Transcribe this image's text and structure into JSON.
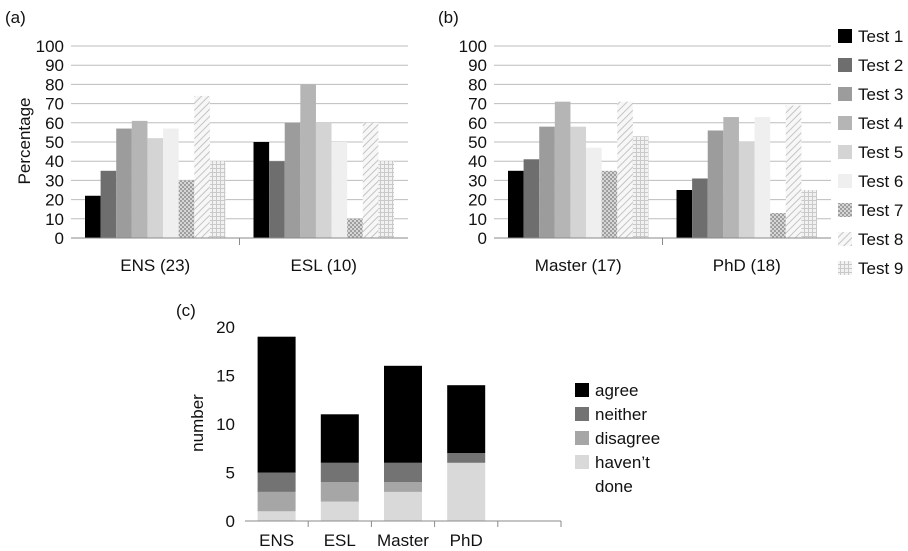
{
  "patterns": {
    "hatch_a": "#a8a8a8",
    "hatch_b": "#d6d6d6",
    "grid_color": "#bdbdbd"
  },
  "chart_data": [
    {
      "id": "a",
      "type": "bar",
      "panel_label": "(a)",
      "ylabel": "Percentage",
      "ylim": [
        0,
        100
      ],
      "yticks": [
        "0",
        "10",
        "20",
        "30",
        "40",
        "50",
        "60",
        "70",
        "80",
        "90",
        "100"
      ],
      "grid": true,
      "categories": [
        "ENS (23)",
        "ESL (10)"
      ],
      "series": [
        {
          "name": "Test 1",
          "color": "#000000",
          "values": [
            22,
            50
          ]
        },
        {
          "name": "Test 2",
          "color": "#6e6e6e",
          "values": [
            35,
            40
          ]
        },
        {
          "name": "Test 3",
          "color": "#9c9c9c",
          "values": [
            57,
            60
          ]
        },
        {
          "name": "Test 4",
          "color": "#b5b5b5",
          "values": [
            61,
            80
          ]
        },
        {
          "name": "Test 5",
          "color": "#d4d4d4",
          "values": [
            52,
            60
          ]
        },
        {
          "name": "Test 6",
          "color": "#efefef",
          "values": [
            57,
            50
          ]
        },
        {
          "name": "Test 7",
          "color": "pattern-checker",
          "values": [
            30,
            10
          ]
        },
        {
          "name": "Test 8",
          "color": "pattern-diagonal",
          "values": [
            74,
            60
          ]
        },
        {
          "name": "Test 9",
          "color": "pattern-grid",
          "values": [
            40,
            40
          ]
        }
      ]
    },
    {
      "id": "b",
      "type": "bar",
      "panel_label": "(b)",
      "ylabel": "",
      "ylim": [
        0,
        100
      ],
      "yticks": [
        "0",
        "10",
        "20",
        "30",
        "40",
        "50",
        "60",
        "70",
        "80",
        "90",
        "100"
      ],
      "grid": true,
      "categories": [
        "Master (17)",
        "PhD (18)"
      ],
      "legend_position": "right",
      "series": [
        {
          "name": "Test 1",
          "color": "#000000",
          "values": [
            35,
            25
          ]
        },
        {
          "name": "Test 2",
          "color": "#6e6e6e",
          "values": [
            41,
            31
          ]
        },
        {
          "name": "Test 3",
          "color": "#9c9c9c",
          "values": [
            58,
            56
          ]
        },
        {
          "name": "Test 4",
          "color": "#b5b5b5",
          "values": [
            71,
            63
          ]
        },
        {
          "name": "Test 5",
          "color": "#d4d4d4",
          "values": [
            58,
            50
          ]
        },
        {
          "name": "Test 6",
          "color": "#efefef",
          "values": [
            47,
            63
          ]
        },
        {
          "name": "Test 7",
          "color": "pattern-checker",
          "values": [
            35,
            13
          ]
        },
        {
          "name": "Test 8",
          "color": "pattern-diagonal",
          "values": [
            71,
            69
          ]
        },
        {
          "name": "Test 9",
          "color": "pattern-grid",
          "values": [
            53,
            25
          ]
        }
      ]
    },
    {
      "id": "c",
      "type": "bar",
      "stacked": true,
      "panel_label": "(c)",
      "ylabel": "number",
      "ylim": [
        0,
        20
      ],
      "yticks": [
        "0",
        "5",
        "10",
        "15",
        "20"
      ],
      "grid": false,
      "categories": [
        "ENS",
        "ESL",
        "Master",
        "PhD"
      ],
      "legend_position": "right",
      "series": [
        {
          "name": "haven't done",
          "legend_lines": [
            "haven’t",
            "done"
          ],
          "color": "#d9d9d9",
          "values": [
            1,
            2,
            3,
            6
          ]
        },
        {
          "name": "disagree",
          "legend_lines": [
            "disagree"
          ],
          "color": "#a6a6a6",
          "values": [
            2,
            2,
            1,
            0
          ]
        },
        {
          "name": "neither",
          "legend_lines": [
            "neither"
          ],
          "color": "#737373",
          "values": [
            2,
            2,
            2,
            1
          ]
        },
        {
          "name": "agree",
          "legend_lines": [
            "agree"
          ],
          "color": "#000000",
          "values": [
            14,
            5,
            10,
            7
          ]
        }
      ]
    }
  ]
}
